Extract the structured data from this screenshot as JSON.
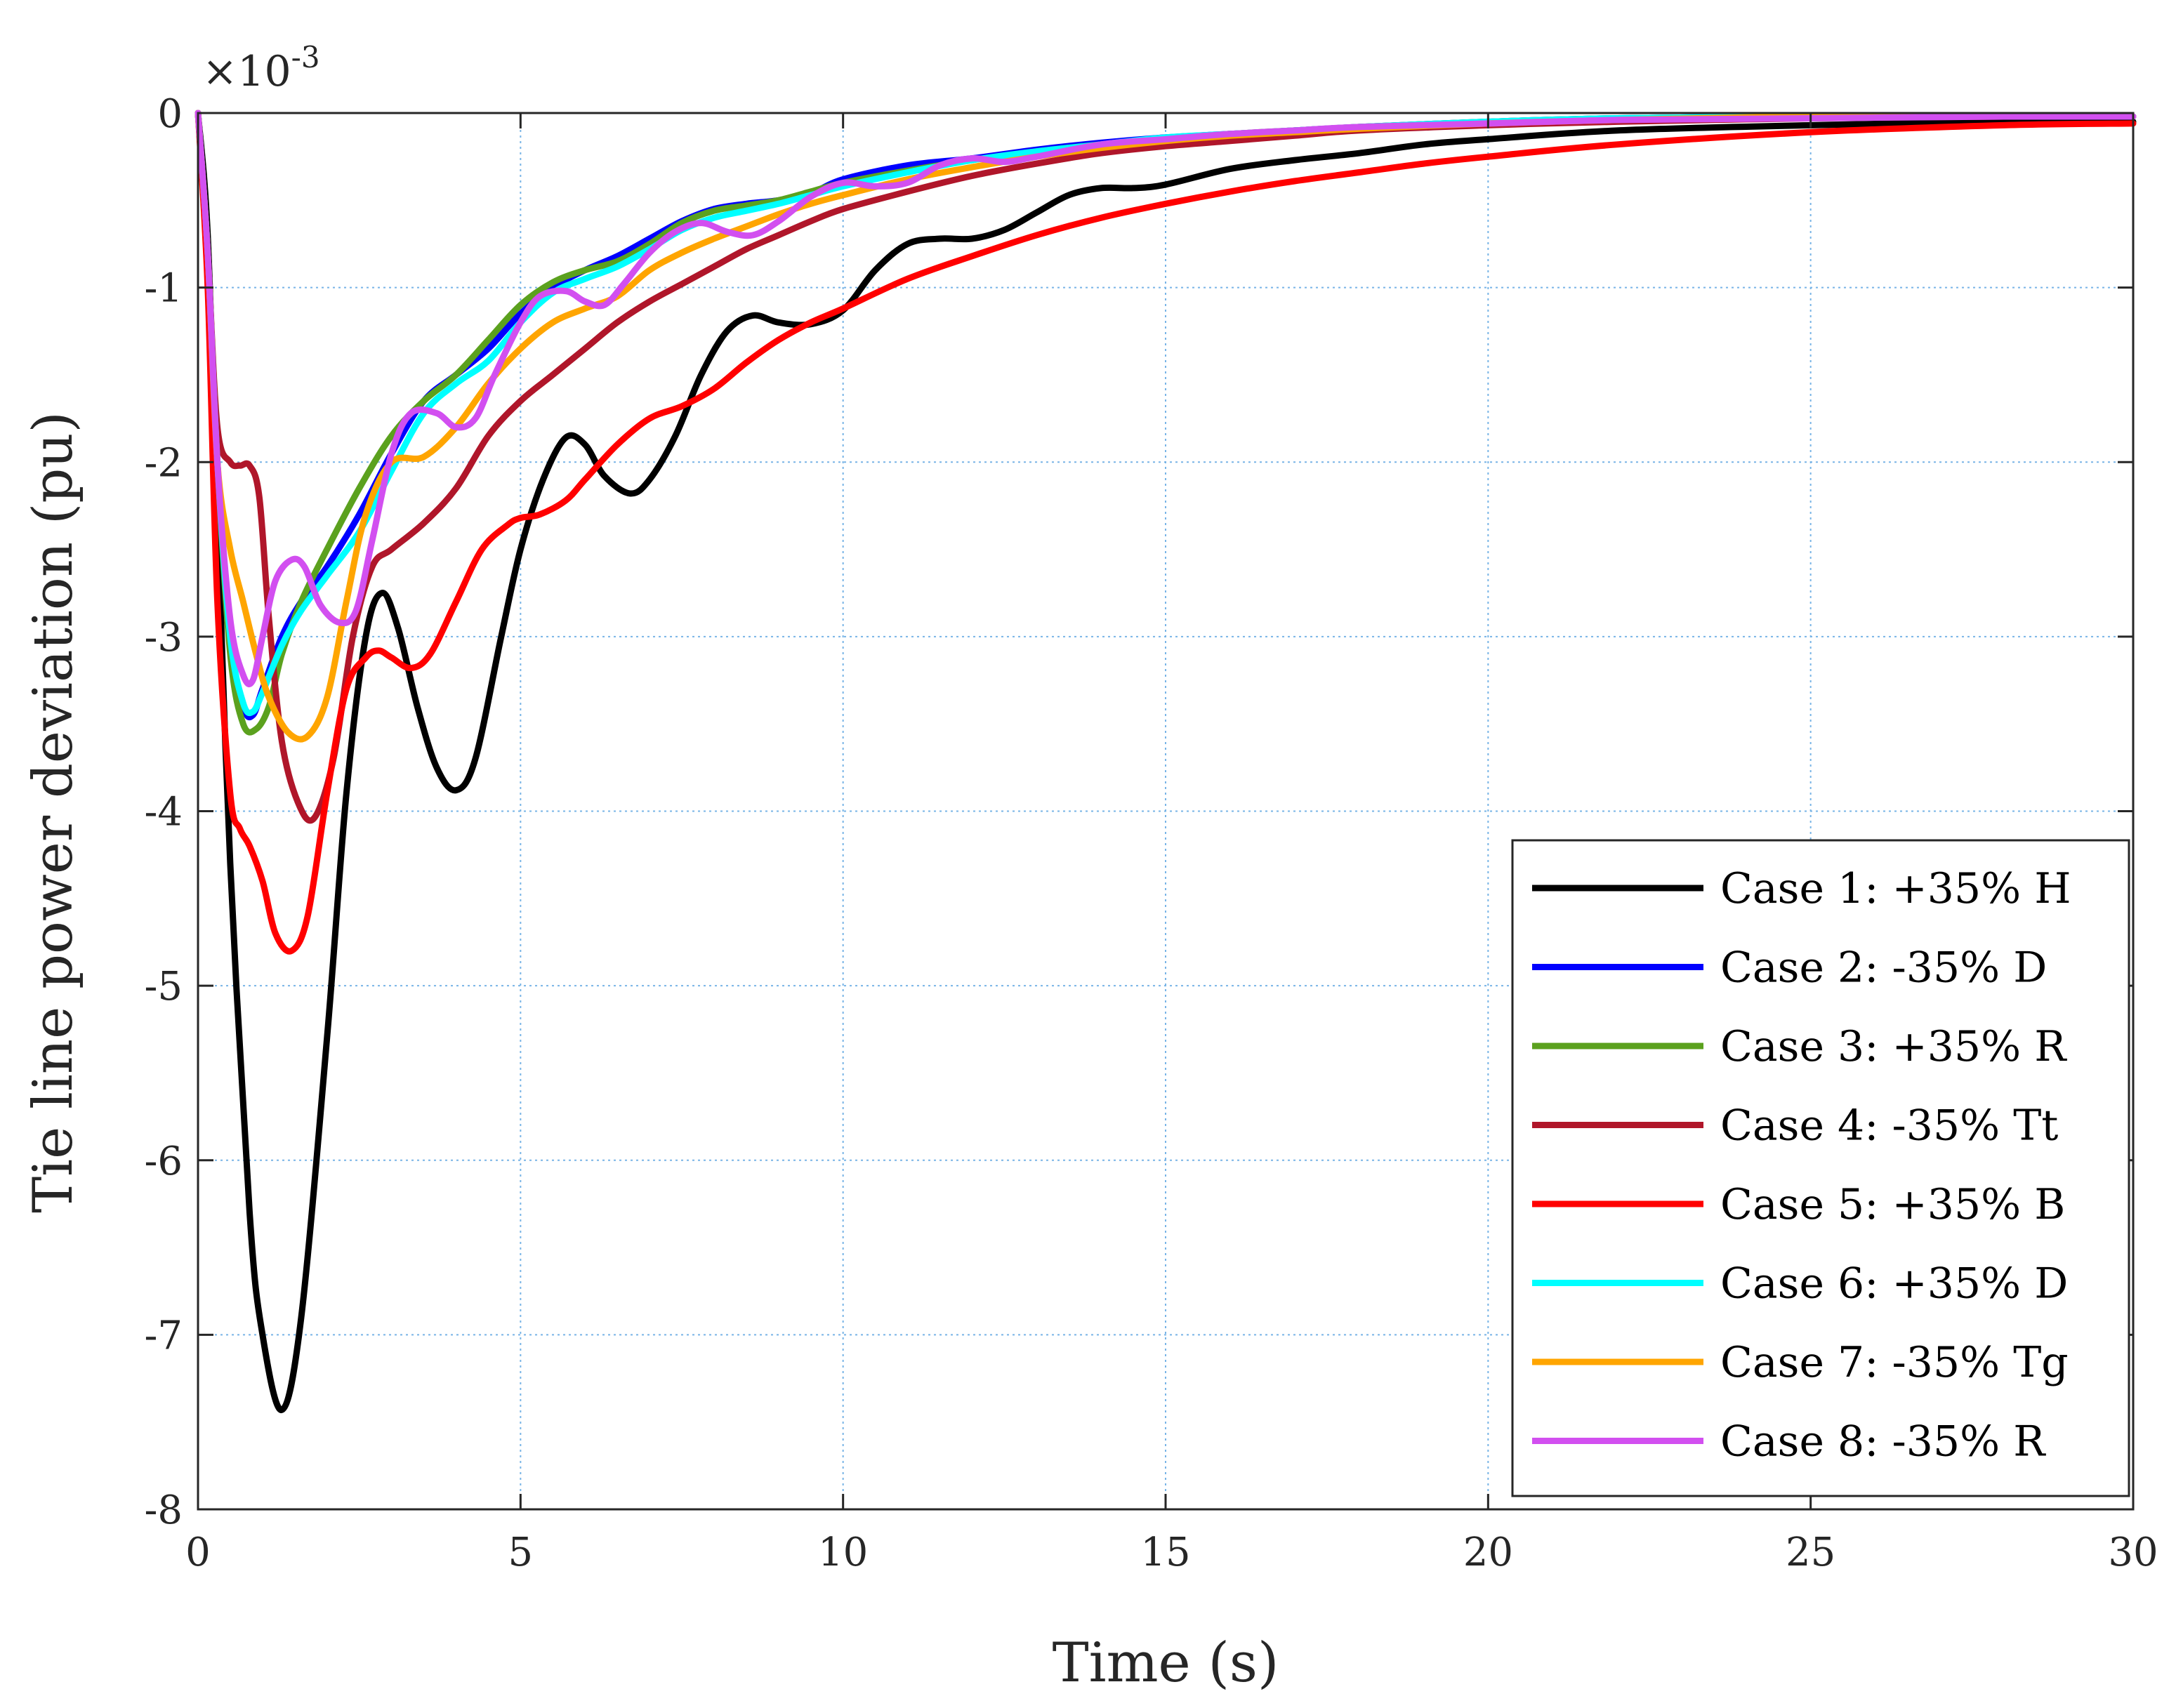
{
  "chart_data": {
    "type": "line",
    "title": "",
    "xlabel": "Time (s)",
    "ylabel": "Tie line power deviation (pu)",
    "exponent_label": "×10",
    "exponent_power": "-3",
    "xlim": [
      0,
      30
    ],
    "ylim": [
      -8,
      0
    ],
    "xticks": [
      0,
      5,
      10,
      15,
      20,
      25,
      30
    ],
    "yticks": [
      0,
      -1,
      -2,
      -3,
      -4,
      -5,
      -6,
      -7,
      -8
    ],
    "xtick_labels": [
      "0",
      "5",
      "10",
      "15",
      "20",
      "25",
      "30"
    ],
    "ytick_labels": [
      "0",
      "-1",
      "-2",
      "-3",
      "-4",
      "-5",
      "-6",
      "-7",
      "-8"
    ],
    "grid": true,
    "legend_position": "bottom-right",
    "series": [
      {
        "name": "Case 1: +35% H",
        "color": "#000000",
        "x": [
          0,
          0.15,
          0.3,
          0.5,
          0.8,
          1.0,
          1.3,
          1.6,
          2.0,
          2.3,
          2.6,
          2.85,
          3.1,
          3.4,
          3.7,
          4.0,
          4.3,
          4.7,
          5.0,
          5.35,
          5.7,
          6.0,
          6.3,
          6.7,
          7.0,
          7.4,
          7.8,
          8.2,
          8.6,
          9.0,
          9.5,
          10.0,
          10.5,
          11.0,
          11.5,
          12.0,
          12.5,
          13.0,
          13.5,
          14.0,
          14.5,
          15.0,
          16.0,
          17.0,
          18.0,
          19.0,
          20.0,
          22.0,
          25.0,
          28.0,
          30.0
        ],
        "y": [
          0,
          -0.7,
          -2.3,
          -4.3,
          -6.3,
          -7.0,
          -7.43,
          -6.9,
          -5.3,
          -3.9,
          -3.0,
          -2.75,
          -2.95,
          -3.4,
          -3.75,
          -3.88,
          -3.7,
          -3.0,
          -2.5,
          -2.1,
          -1.86,
          -1.9,
          -2.08,
          -2.18,
          -2.1,
          -1.85,
          -1.5,
          -1.25,
          -1.16,
          -1.2,
          -1.21,
          -1.13,
          -0.9,
          -0.75,
          -0.72,
          -0.72,
          -0.67,
          -0.57,
          -0.47,
          -0.43,
          -0.43,
          -0.41,
          -0.32,
          -0.27,
          -0.23,
          -0.18,
          -0.15,
          -0.1,
          -0.07,
          -0.05,
          -0.05
        ]
      },
      {
        "name": "Case 2: -35% D",
        "color": "#0000ff",
        "x": [
          0,
          0.15,
          0.3,
          0.5,
          0.7,
          0.85,
          1.0,
          1.3,
          1.6,
          2.0,
          2.5,
          3.0,
          3.5,
          4.0,
          4.5,
          5.0,
          5.5,
          6.0,
          6.5,
          7.0,
          7.5,
          8.0,
          8.5,
          9.0,
          9.5,
          10.0,
          11.0,
          12.0,
          13.0,
          14.0,
          15.0,
          16.0,
          17.0,
          18.0,
          20.0,
          22.0,
          25.0,
          28.0,
          30.0
        ],
        "y": [
          0,
          -0.8,
          -2.0,
          -3.0,
          -3.4,
          -3.45,
          -3.3,
          -3.0,
          -2.8,
          -2.6,
          -2.3,
          -1.95,
          -1.65,
          -1.5,
          -1.35,
          -1.15,
          -1.0,
          -0.9,
          -0.82,
          -0.72,
          -0.62,
          -0.55,
          -0.52,
          -0.5,
          -0.46,
          -0.38,
          -0.3,
          -0.26,
          -0.21,
          -0.17,
          -0.14,
          -0.12,
          -0.1,
          -0.08,
          -0.05,
          -0.03,
          -0.02,
          -0.02,
          -0.02
        ]
      },
      {
        "name": "Case 3: +35% R",
        "color": "#5ba11e",
        "x": [
          0,
          0.15,
          0.3,
          0.5,
          0.7,
          0.9,
          1.1,
          1.3,
          1.6,
          2.0,
          2.5,
          3.0,
          3.5,
          4.0,
          4.5,
          5.0,
          5.5,
          6.0,
          6.5,
          7.0,
          7.5,
          8.0,
          8.5,
          9.0,
          9.5,
          10.0,
          11.0,
          12.0,
          13.0,
          14.0,
          15.0,
          16.0,
          17.0,
          18.0,
          20.0,
          22.0,
          25.0,
          28.0,
          30.0
        ],
        "y": [
          0,
          -0.8,
          -2.0,
          -3.1,
          -3.5,
          -3.53,
          -3.4,
          -3.1,
          -2.8,
          -2.5,
          -2.15,
          -1.85,
          -1.65,
          -1.5,
          -1.3,
          -1.1,
          -0.97,
          -0.9,
          -0.85,
          -0.75,
          -0.63,
          -0.56,
          -0.53,
          -0.5,
          -0.45,
          -0.4,
          -0.33,
          -0.27,
          -0.22,
          -0.18,
          -0.15,
          -0.12,
          -0.1,
          -0.08,
          -0.05,
          -0.03,
          -0.02,
          -0.02,
          -0.02
        ]
      },
      {
        "name": "Case 4: -35% Tt",
        "color": "#b0162a",
        "x": [
          0,
          0.15,
          0.3,
          0.5,
          0.65,
          0.8,
          0.95,
          1.1,
          1.3,
          1.55,
          1.8,
          2.1,
          2.4,
          2.7,
          3.0,
          3.5,
          4.0,
          4.5,
          5.0,
          5.5,
          6.0,
          6.5,
          7.0,
          7.5,
          8.0,
          8.5,
          9.0,
          9.5,
          10.0,
          11.0,
          12.0,
          13.0,
          14.0,
          15.0,
          16.0,
          17.0,
          18.0,
          20.0,
          22.0,
          25.0,
          28.0,
          30.0
        ],
        "y": [
          0,
          -0.8,
          -1.8,
          -2.0,
          -2.02,
          -2.02,
          -2.2,
          -2.9,
          -3.6,
          -3.95,
          -4.04,
          -3.7,
          -3.0,
          -2.6,
          -2.5,
          -2.35,
          -2.15,
          -1.85,
          -1.65,
          -1.5,
          -1.35,
          -1.2,
          -1.08,
          -0.98,
          -0.88,
          -0.78,
          -0.7,
          -0.62,
          -0.55,
          -0.45,
          -0.36,
          -0.29,
          -0.23,
          -0.19,
          -0.16,
          -0.13,
          -0.1,
          -0.07,
          -0.05,
          -0.03,
          -0.02,
          -0.02
        ]
      },
      {
        "name": "Case 5: +35% B",
        "color": "#ff0000",
        "x": [
          0,
          0.15,
          0.3,
          0.5,
          0.65,
          0.8,
          1.0,
          1.2,
          1.45,
          1.7,
          2.0,
          2.3,
          2.6,
          2.8,
          3.0,
          3.3,
          3.6,
          4.0,
          4.4,
          4.8,
          5.0,
          5.3,
          5.7,
          6.0,
          6.5,
          7.0,
          7.5,
          8.0,
          8.5,
          9.0,
          9.5,
          10.0,
          11.0,
          12.0,
          13.0,
          14.0,
          15.0,
          16.0,
          17.0,
          18.0,
          19.0,
          20.0,
          22.0,
          25.0,
          28.0,
          30.0
        ],
        "y": [
          0,
          -1.0,
          -2.8,
          -3.9,
          -4.1,
          -4.2,
          -4.4,
          -4.7,
          -4.8,
          -4.6,
          -3.9,
          -3.3,
          -3.12,
          -3.08,
          -3.12,
          -3.18,
          -3.1,
          -2.8,
          -2.5,
          -2.36,
          -2.32,
          -2.3,
          -2.22,
          -2.1,
          -1.9,
          -1.75,
          -1.68,
          -1.58,
          -1.43,
          -1.3,
          -1.2,
          -1.12,
          -0.95,
          -0.82,
          -0.7,
          -0.6,
          -0.52,
          -0.45,
          -0.39,
          -0.34,
          -0.29,
          -0.25,
          -0.18,
          -0.11,
          -0.07,
          -0.06
        ]
      },
      {
        "name": "Case 6: +35% D",
        "color": "#00ffff",
        "x": [
          0,
          0.15,
          0.3,
          0.5,
          0.7,
          0.85,
          1.0,
          1.3,
          1.6,
          2.0,
          2.5,
          3.0,
          3.5,
          4.0,
          4.5,
          5.0,
          5.5,
          6.0,
          6.5,
          7.0,
          7.5,
          8.0,
          8.5,
          9.0,
          9.5,
          10.0,
          11.0,
          12.0,
          13.0,
          14.0,
          15.0,
          16.0,
          17.0,
          18.0,
          20.0,
          22.0,
          25.0,
          28.0,
          30.0
        ],
        "y": [
          0,
          -0.8,
          -2.0,
          -3.0,
          -3.38,
          -3.43,
          -3.32,
          -3.05,
          -2.85,
          -2.65,
          -2.4,
          -2.05,
          -1.72,
          -1.55,
          -1.42,
          -1.2,
          -1.03,
          -0.95,
          -0.88,
          -0.78,
          -0.67,
          -0.6,
          -0.56,
          -0.52,
          -0.47,
          -0.42,
          -0.34,
          -0.27,
          -0.22,
          -0.18,
          -0.14,
          -0.12,
          -0.1,
          -0.08,
          -0.05,
          -0.03,
          -0.02,
          -0.02,
          -0.02
        ]
      },
      {
        "name": "Case 7: -35% Tg",
        "color": "#ffa500",
        "x": [
          0,
          0.15,
          0.3,
          0.5,
          0.7,
          0.9,
          1.1,
          1.4,
          1.7,
          2.0,
          2.3,
          2.6,
          3.0,
          3.5,
          4.0,
          4.5,
          5.0,
          5.5,
          6.0,
          6.5,
          7.0,
          7.5,
          8.0,
          8.5,
          9.0,
          9.5,
          10.0,
          11.0,
          12.0,
          13.0,
          14.0,
          15.0,
          16.0,
          17.0,
          18.0,
          20.0,
          22.0,
          25.0,
          28.0,
          30.0
        ],
        "y": [
          0,
          -0.8,
          -2.0,
          -2.5,
          -2.8,
          -3.1,
          -3.35,
          -3.55,
          -3.57,
          -3.35,
          -2.8,
          -2.3,
          -2.0,
          -1.97,
          -1.8,
          -1.55,
          -1.35,
          -1.2,
          -1.12,
          -1.05,
          -0.9,
          -0.8,
          -0.72,
          -0.65,
          -0.58,
          -0.52,
          -0.47,
          -0.38,
          -0.31,
          -0.25,
          -0.2,
          -0.16,
          -0.13,
          -0.11,
          -0.09,
          -0.06,
          -0.04,
          -0.02,
          -0.02,
          -0.02
        ]
      },
      {
        "name": "Case 8: -35% R",
        "color": "#d24ff0",
        "x": [
          0,
          0.15,
          0.3,
          0.5,
          0.7,
          0.85,
          1.0,
          1.2,
          1.45,
          1.65,
          1.9,
          2.2,
          2.45,
          2.7,
          3.0,
          3.3,
          3.7,
          4.0,
          4.3,
          4.6,
          5.0,
          5.3,
          5.7,
          6.0,
          6.3,
          6.6,
          7.0,
          7.4,
          7.8,
          8.2,
          8.6,
          9.0,
          9.5,
          10.0,
          10.5,
          11.0,
          11.5,
          12.0,
          12.5,
          13.0,
          14.0,
          15.0,
          16.0,
          17.0,
          18.0,
          20.0,
          22.0,
          25.0,
          28.0,
          30.0
        ],
        "y": [
          0,
          -0.8,
          -2.0,
          -2.9,
          -3.22,
          -3.25,
          -3.0,
          -2.68,
          -2.56,
          -2.6,
          -2.82,
          -2.92,
          -2.85,
          -2.45,
          -1.95,
          -1.72,
          -1.72,
          -1.8,
          -1.75,
          -1.5,
          -1.2,
          -1.05,
          -1.02,
          -1.08,
          -1.1,
          -0.98,
          -0.8,
          -0.68,
          -0.63,
          -0.68,
          -0.7,
          -0.62,
          -0.48,
          -0.4,
          -0.42,
          -0.4,
          -0.3,
          -0.26,
          -0.28,
          -0.25,
          -0.18,
          -0.15,
          -0.12,
          -0.1,
          -0.08,
          -0.06,
          -0.04,
          -0.03,
          -0.02,
          -0.02
        ]
      }
    ]
  }
}
